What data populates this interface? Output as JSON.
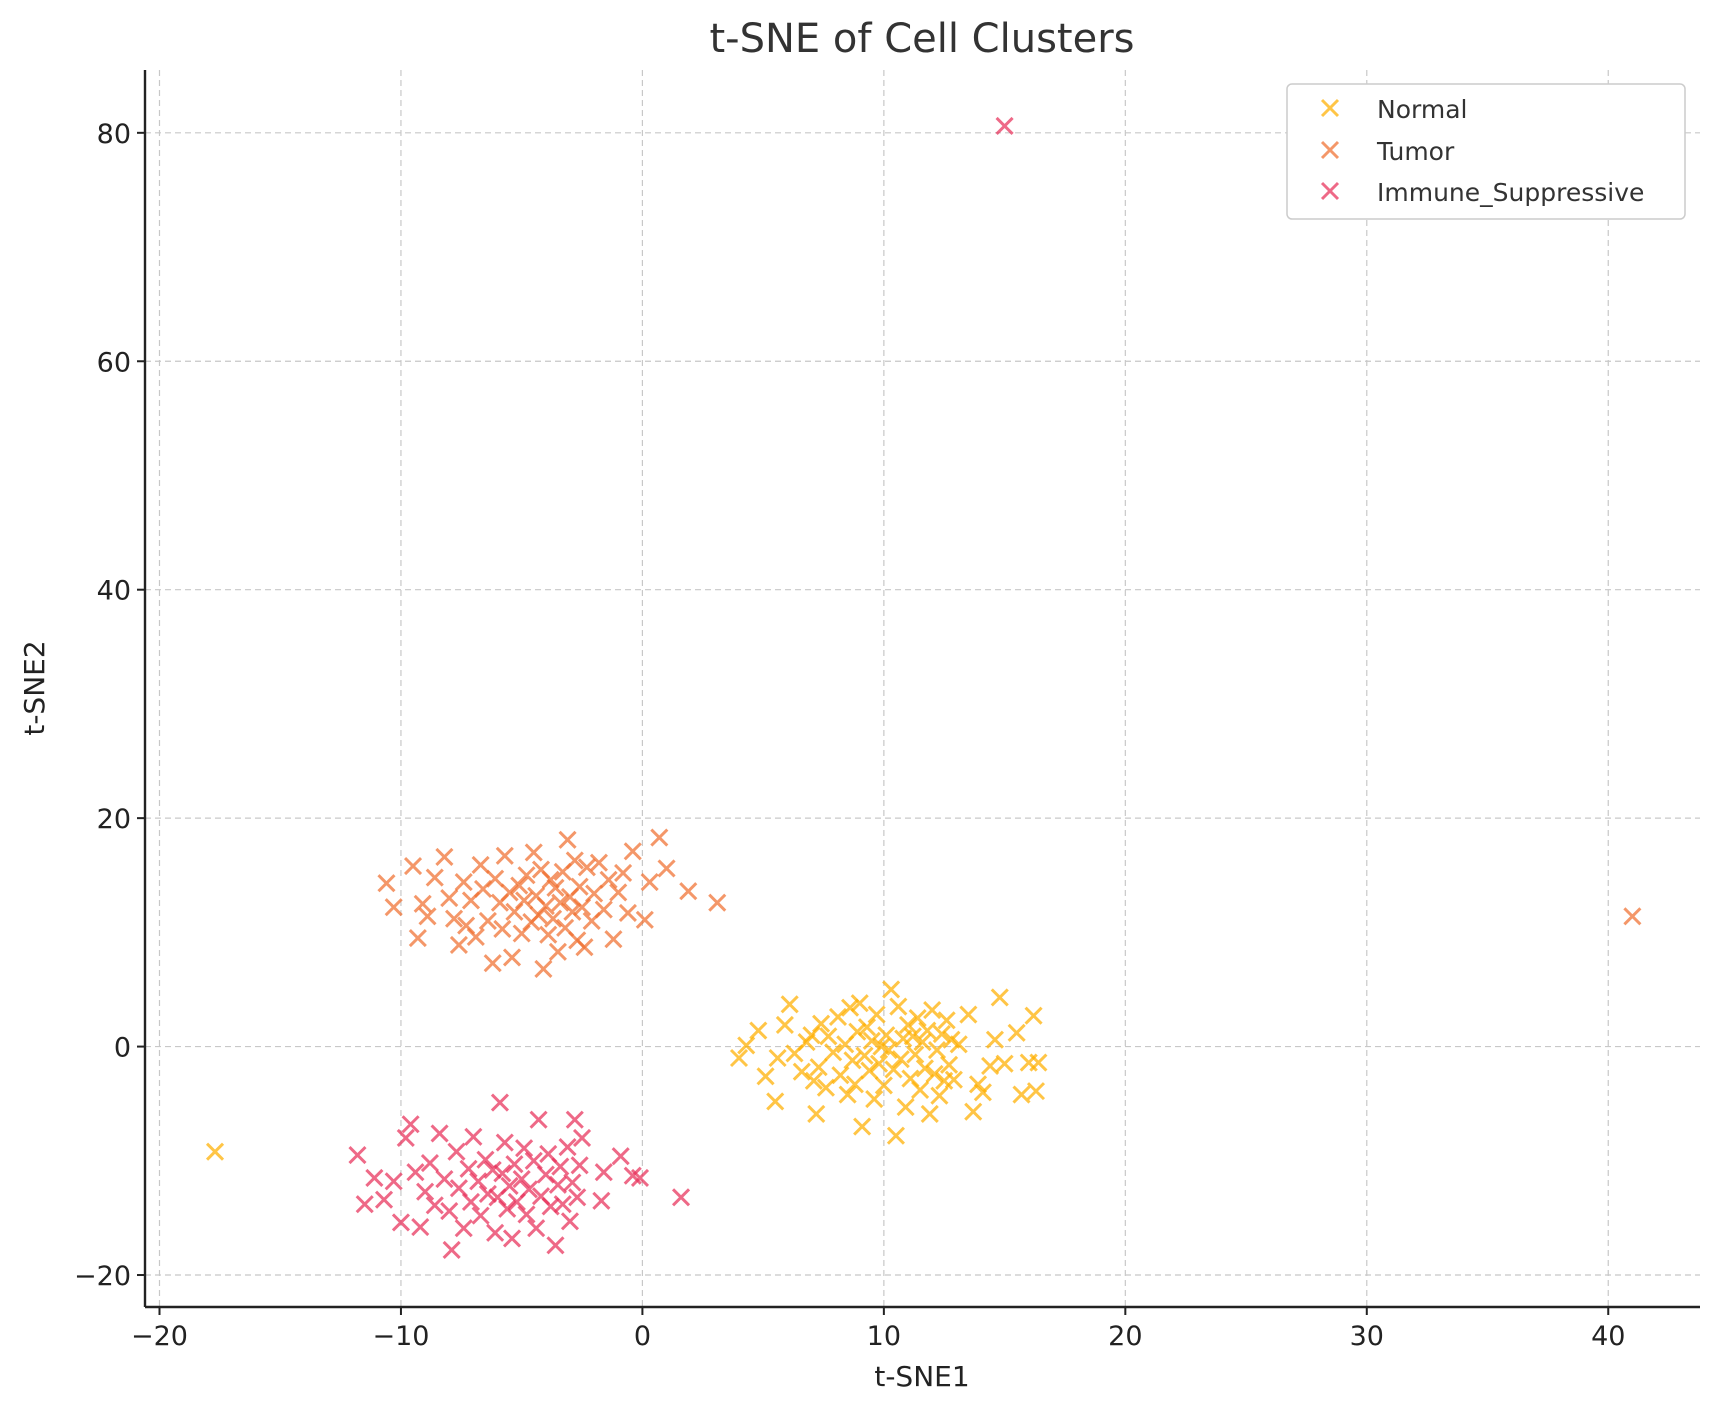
{
  "chart_data": {
    "type": "scatter",
    "title": "t-SNE of Cell Clusters",
    "xlabel": "t-SNE1",
    "ylabel": "t-SNE2",
    "xlim": [
      -20.6,
      43.8
    ],
    "ylim": [
      -22.8,
      85.5
    ],
    "xticks": [
      -20,
      -10,
      0,
      10,
      20,
      30,
      40
    ],
    "yticks": [
      -20,
      0,
      20,
      40,
      60,
      80
    ],
    "xtick_labels": [
      "−20",
      "−10",
      "0",
      "10",
      "20",
      "30",
      "40"
    ],
    "ytick_labels": [
      "−20",
      "0",
      "20",
      "40",
      "60",
      "80"
    ],
    "grid": true,
    "legend_position": "top-right",
    "marker": "x",
    "series": [
      {
        "name": "Normal",
        "color": "#FFB000",
        "points": [
          [
            -17.7,
            -9.2
          ],
          [
            4.0,
            -1.0
          ],
          [
            4.3,
            0.1
          ],
          [
            4.8,
            1.4
          ],
          [
            5.1,
            -2.6
          ],
          [
            5.5,
            -4.8
          ],
          [
            5.6,
            -1.0
          ],
          [
            5.9,
            1.9
          ],
          [
            6.1,
            3.7
          ],
          [
            6.3,
            -0.6
          ],
          [
            6.6,
            -2.2
          ],
          [
            6.8,
            0.4
          ],
          [
            7.0,
            1.0
          ],
          [
            7.1,
            -3.0
          ],
          [
            7.2,
            -5.9
          ],
          [
            7.3,
            -1.8
          ],
          [
            7.4,
            2.0
          ],
          [
            7.6,
            -3.6
          ],
          [
            7.7,
            0.9
          ],
          [
            7.9,
            -0.5
          ],
          [
            8.1,
            2.6
          ],
          [
            8.2,
            -2.5
          ],
          [
            8.4,
            0.2
          ],
          [
            8.5,
            -4.2
          ],
          [
            8.6,
            3.4
          ],
          [
            8.7,
            -1.2
          ],
          [
            8.8,
            -3.3
          ],
          [
            8.9,
            1.3
          ],
          [
            9.0,
            3.8
          ],
          [
            9.1,
            -7.0
          ],
          [
            9.2,
            -0.8
          ],
          [
            9.3,
            1.7
          ],
          [
            9.4,
            -2.1
          ],
          [
            9.5,
            0.5
          ],
          [
            9.6,
            -4.6
          ],
          [
            9.7,
            2.8
          ],
          [
            9.8,
            -1.5
          ],
          [
            9.9,
            0.0
          ],
          [
            10.0,
            -3.4
          ],
          [
            10.1,
            1.0
          ],
          [
            10.2,
            -0.3
          ],
          [
            10.3,
            5.0
          ],
          [
            10.4,
            -2.0
          ],
          [
            10.5,
            -7.8
          ],
          [
            10.6,
            3.5
          ],
          [
            10.7,
            -1.1
          ],
          [
            10.8,
            0.7
          ],
          [
            10.9,
            -5.3
          ],
          [
            11.0,
            1.9
          ],
          [
            11.1,
            -2.8
          ],
          [
            11.2,
            0.9
          ],
          [
            11.3,
            -0.7
          ],
          [
            11.4,
            2.5
          ],
          [
            11.5,
            -3.8
          ],
          [
            11.6,
            0.4
          ],
          [
            11.7,
            -1.9
          ],
          [
            11.8,
            1.4
          ],
          [
            11.9,
            -5.9
          ],
          [
            12.0,
            3.2
          ],
          [
            12.1,
            -2.4
          ],
          [
            12.2,
            -0.3
          ],
          [
            12.3,
            -4.3
          ],
          [
            12.4,
            1.1
          ],
          [
            12.5,
            -3.0
          ],
          [
            12.6,
            2.3
          ],
          [
            12.7,
            -1.6
          ],
          [
            12.8,
            0.6
          ],
          [
            12.9,
            -2.9
          ],
          [
            13.1,
            0.2
          ],
          [
            13.5,
            2.8
          ],
          [
            13.7,
            -5.7
          ],
          [
            13.9,
            -3.3
          ],
          [
            14.1,
            -4.0
          ],
          [
            14.4,
            -1.7
          ],
          [
            14.6,
            0.6
          ],
          [
            14.8,
            4.3
          ],
          [
            15.0,
            -1.5
          ],
          [
            15.5,
            1.2
          ],
          [
            15.7,
            -4.2
          ],
          [
            16.0,
            -1.4
          ],
          [
            16.2,
            2.7
          ],
          [
            16.3,
            -3.9
          ],
          [
            16.4,
            -1.4
          ]
        ]
      },
      {
        "name": "Tumor",
        "color": "#F07030",
        "points": [
          [
            41.0,
            11.4
          ],
          [
            -10.6,
            14.3
          ],
          [
            -10.3,
            12.2
          ],
          [
            -9.5,
            15.8
          ],
          [
            -9.3,
            9.5
          ],
          [
            -9.1,
            12.5
          ],
          [
            -8.9,
            11.4
          ],
          [
            -8.6,
            14.8
          ],
          [
            -8.2,
            16.6
          ],
          [
            -8.0,
            13.0
          ],
          [
            -7.8,
            11.2
          ],
          [
            -7.6,
            8.9
          ],
          [
            -7.4,
            14.4
          ],
          [
            -7.3,
            10.6
          ],
          [
            -7.1,
            12.8
          ],
          [
            -6.9,
            9.6
          ],
          [
            -6.7,
            15.9
          ],
          [
            -6.6,
            13.8
          ],
          [
            -6.4,
            11.0
          ],
          [
            -6.2,
            7.3
          ],
          [
            -6.1,
            14.7
          ],
          [
            -5.9,
            12.6
          ],
          [
            -5.8,
            10.3
          ],
          [
            -5.7,
            16.7
          ],
          [
            -5.5,
            13.5
          ],
          [
            -5.4,
            7.8
          ],
          [
            -5.3,
            11.8
          ],
          [
            -5.1,
            14.1
          ],
          [
            -5.0,
            9.9
          ],
          [
            -4.9,
            12.8
          ],
          [
            -4.8,
            15.0
          ],
          [
            -4.6,
            10.9
          ],
          [
            -4.5,
            17.0
          ],
          [
            -4.4,
            13.2
          ],
          [
            -4.3,
            11.5
          ],
          [
            -4.2,
            15.5
          ],
          [
            -4.1,
            6.8
          ],
          [
            -4.0,
            12.3
          ],
          [
            -3.9,
            9.8
          ],
          [
            -3.8,
            14.6
          ],
          [
            -3.7,
            11.2
          ],
          [
            -3.6,
            13.9
          ],
          [
            -3.5,
            8.3
          ],
          [
            -3.4,
            12.6
          ],
          [
            -3.3,
            15.3
          ],
          [
            -3.2,
            10.4
          ],
          [
            -3.1,
            18.1
          ],
          [
            -3.0,
            13.1
          ],
          [
            -2.9,
            11.8
          ],
          [
            -2.8,
            16.3
          ],
          [
            -2.7,
            9.3
          ],
          [
            -2.6,
            14.0
          ],
          [
            -2.5,
            12.2
          ],
          [
            -2.4,
            8.7
          ],
          [
            -2.3,
            15.7
          ],
          [
            -2.1,
            11.0
          ],
          [
            -2.0,
            13.4
          ],
          [
            -1.8,
            16.1
          ],
          [
            -1.6,
            12.0
          ],
          [
            -1.4,
            14.6
          ],
          [
            -1.2,
            9.4
          ],
          [
            -1.0,
            13.5
          ],
          [
            -0.8,
            15.2
          ],
          [
            -0.6,
            11.7
          ],
          [
            -0.4,
            17.1
          ],
          [
            0.1,
            11.1
          ],
          [
            0.3,
            14.4
          ],
          [
            0.7,
            18.3
          ],
          [
            1.0,
            15.6
          ],
          [
            1.9,
            13.6
          ],
          [
            3.1,
            12.6
          ]
        ]
      },
      {
        "name": "Immune_Suppressive",
        "color": "#E8305A",
        "points": [
          [
            15.0,
            80.6
          ],
          [
            -11.8,
            -9.5
          ],
          [
            -11.5,
            -13.8
          ],
          [
            -11.1,
            -11.5
          ],
          [
            -10.7,
            -13.4
          ],
          [
            -10.3,
            -11.8
          ],
          [
            -10.0,
            -15.4
          ],
          [
            -9.8,
            -8.0
          ],
          [
            -9.6,
            -6.8
          ],
          [
            -9.4,
            -11.0
          ],
          [
            -9.2,
            -15.8
          ],
          [
            -9.0,
            -12.7
          ],
          [
            -8.8,
            -10.2
          ],
          [
            -8.6,
            -13.9
          ],
          [
            -8.4,
            -7.6
          ],
          [
            -8.2,
            -11.6
          ],
          [
            -8.0,
            -14.4
          ],
          [
            -7.9,
            -17.8
          ],
          [
            -7.7,
            -9.2
          ],
          [
            -7.6,
            -12.4
          ],
          [
            -7.4,
            -15.9
          ],
          [
            -7.2,
            -10.7
          ],
          [
            -7.1,
            -13.6
          ],
          [
            -7.0,
            -7.9
          ],
          [
            -6.8,
            -11.8
          ],
          [
            -6.7,
            -14.8
          ],
          [
            -6.5,
            -9.9
          ],
          [
            -6.4,
            -12.9
          ],
          [
            -6.2,
            -10.8
          ],
          [
            -6.1,
            -16.3
          ],
          [
            -6.0,
            -13.2
          ],
          [
            -5.9,
            -4.9
          ],
          [
            -5.8,
            -11.1
          ],
          [
            -5.7,
            -8.4
          ],
          [
            -5.6,
            -14.2
          ],
          [
            -5.5,
            -12.2
          ],
          [
            -5.4,
            -16.8
          ],
          [
            -5.3,
            -10.3
          ],
          [
            -5.2,
            -13.6
          ],
          [
            -5.0,
            -11.6
          ],
          [
            -4.9,
            -8.9
          ],
          [
            -4.8,
            -14.7
          ],
          [
            -4.7,
            -12.5
          ],
          [
            -4.5,
            -10.0
          ],
          [
            -4.4,
            -15.9
          ],
          [
            -4.3,
            -6.4
          ],
          [
            -4.2,
            -13.1
          ],
          [
            -4.0,
            -11.2
          ],
          [
            -3.9,
            -9.4
          ],
          [
            -3.8,
            -14.0
          ],
          [
            -3.6,
            -17.4
          ],
          [
            -3.5,
            -12.1
          ],
          [
            -3.4,
            -10.5
          ],
          [
            -3.3,
            -13.8
          ],
          [
            -3.1,
            -8.8
          ],
          [
            -3.0,
            -15.3
          ],
          [
            -2.9,
            -11.9
          ],
          [
            -2.8,
            -6.4
          ],
          [
            -2.7,
            -13.2
          ],
          [
            -2.6,
            -10.4
          ],
          [
            -2.5,
            -8.0
          ],
          [
            -1.7,
            -13.5
          ],
          [
            -1.6,
            -11.0
          ],
          [
            -0.9,
            -9.6
          ],
          [
            -0.4,
            -11.3
          ],
          [
            -0.1,
            -11.5
          ],
          [
            1.6,
            -13.2
          ]
        ]
      }
    ]
  }
}
